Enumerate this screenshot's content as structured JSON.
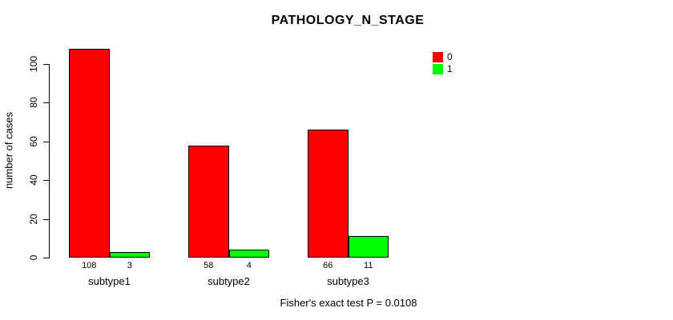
{
  "chart_data": {
    "type": "bar",
    "title": "PATHOLOGY_N_STAGE",
    "xlabel": "",
    "ylabel": "number of cases",
    "categories": [
      "subtype1",
      "subtype2",
      "subtype3"
    ],
    "series": [
      {
        "name": "0",
        "color": "#ff0000",
        "values": [
          108,
          58,
          66
        ]
      },
      {
        "name": "1",
        "color": "#00ff00",
        "values": [
          3,
          4,
          11
        ]
      }
    ],
    "bar_value_labels": [
      [
        "108",
        "3"
      ],
      [
        "58",
        "4"
      ],
      [
        "66",
        "11"
      ]
    ],
    "yticks": [
      0,
      20,
      40,
      60,
      80,
      100
    ],
    "ylim": [
      0,
      108
    ],
    "grid": false,
    "legend_position": "top-right",
    "legend_entries": [
      {
        "label": "0",
        "color": "#ff0000"
      },
      {
        "label": "1",
        "color": "#00ff00"
      }
    ],
    "annotation": "Fisher's exact test P = 0.0108",
    "bar_border_color": "#000000",
    "axis_color": "#000000",
    "background_color": "#ffffff"
  }
}
